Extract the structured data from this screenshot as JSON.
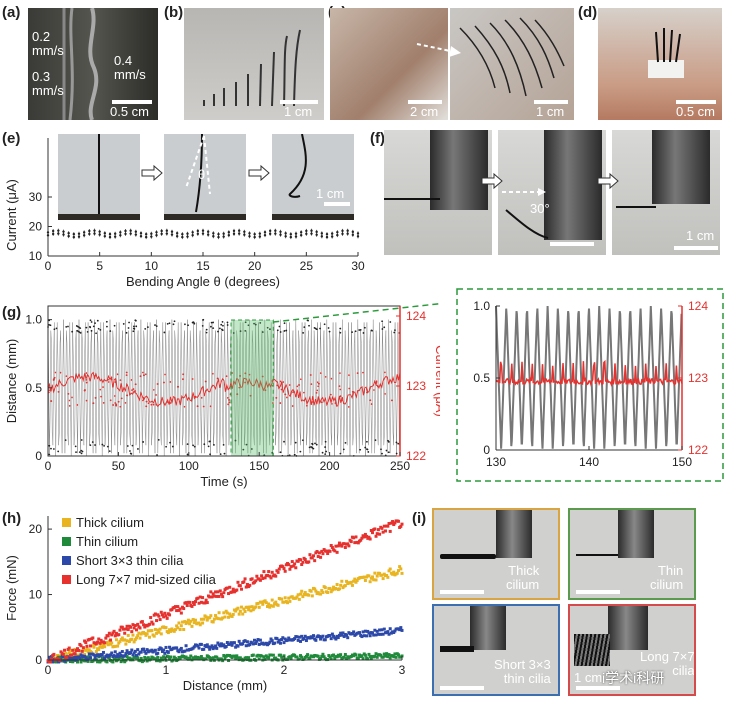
{
  "panels": {
    "a": {
      "label": "(a)",
      "speed_top": "0.2\nmm/s",
      "speed_right": "0.4\nmm/s",
      "speed_bottom": "0.3\nmm/s",
      "scale": "0.5 cm"
    },
    "b": {
      "label": "(b)",
      "scale": "1 cm"
    },
    "c": {
      "label": "(c)",
      "scale_left": "2 cm",
      "scale_right": "1 cm"
    },
    "d": {
      "label": "(d)",
      "scale": "0.5 cm"
    },
    "e": {
      "label": "(e)",
      "theta": "θ",
      "scale": "1 cm"
    },
    "f": {
      "label": "(f)",
      "angle": "30°",
      "scale": "1 cm"
    },
    "g": {
      "label": "(g)"
    },
    "h": {
      "label": "(h)"
    },
    "i": {
      "label": "(i)",
      "thick": "Thick\ncilium",
      "thin": "Thin\ncilium",
      "short": "Short 3×3\nthin cilia",
      "long": "Long 7×7\ncilia",
      "scale": "1 cm",
      "watermark": "i学术i科研"
    }
  },
  "colors": {
    "red": "#e6312e",
    "gray": "#777777",
    "green_box": "#2a9a3a",
    "yellow": "#e8b420",
    "green": "#1e8a3a",
    "blue": "#2c48a8",
    "frame_orange": "#d9a441",
    "frame_green": "#5c9a4e",
    "frame_blue": "#3b6fb0",
    "frame_red": "#d54a4a"
  },
  "chart_data": [
    {
      "id": "e",
      "type": "scatter",
      "xlabel": "Bending Angle θ (degrees)",
      "ylabel": "Current (μA)",
      "xlim": [
        0,
        30
      ],
      "ylim": [
        10,
        50
      ],
      "xticks": [
        "0",
        "5",
        "10",
        "15",
        "20",
        "25",
        "30"
      ],
      "yticks": [
        "10",
        "20",
        "30"
      ],
      "series": [
        {
          "values_mean": [
            18,
            17
          ]
        }
      ]
    },
    {
      "id": "g",
      "type": "line",
      "xlabel": "Time (s)",
      "ylabel": "Distance (mm)",
      "y2label": "Current (μA)",
      "xlim": [
        0,
        250
      ],
      "ylim": [
        0,
        1.1
      ],
      "y2lim": [
        122,
        124
      ],
      "xticks": [
        "0",
        "50",
        "100",
        "150",
        "200",
        "250"
      ],
      "yticks": [
        "0",
        "0.5",
        "1.0"
      ],
      "y2ticks": [
        "122",
        "123",
        "124"
      ],
      "highlight": [
        130,
        160
      ]
    },
    {
      "id": "g_inset",
      "type": "line",
      "xlim": [
        130,
        150
      ],
      "ylim": [
        0,
        1.0
      ],
      "y2lim": [
        122,
        124
      ],
      "xticks": [
        "130",
        "140",
        "150"
      ],
      "yticks": [
        "0",
        "0.5",
        "1.0"
      ],
      "y2ticks": [
        "122",
        "123",
        "124"
      ]
    },
    {
      "id": "h",
      "type": "scatter",
      "xlabel": "Distance (mm)",
      "ylabel": "Force (mN)",
      "xlim": [
        0,
        3
      ],
      "ylim": [
        0,
        22
      ],
      "xticks": [
        "0",
        "1",
        "2",
        "3"
      ],
      "yticks": [
        "0",
        "10",
        "20"
      ],
      "series": [
        {
          "name": "Thick cilium",
          "slope": 4.6
        },
        {
          "name": "Thin cilium",
          "slope": 0.2
        },
        {
          "name": "Short 3×3 thin cilia",
          "slope": 1.5
        },
        {
          "name": "Long 7×7 mid-sized cilia",
          "slope": 7.0
        }
      ]
    }
  ]
}
